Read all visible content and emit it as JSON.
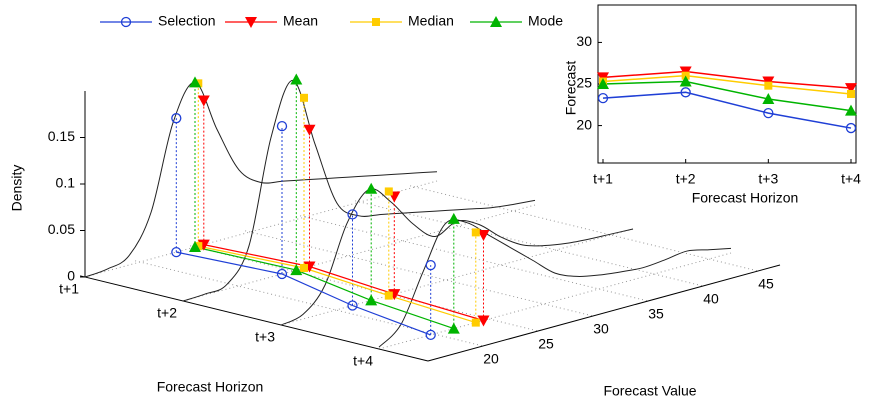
{
  "chart_data": [
    {
      "type": "density3d",
      "legend": "top",
      "categories": [
        "t+1",
        "t+2",
        "t+3",
        "t+4"
      ],
      "xlabel": "Forecast Value",
      "ylabel": "Forecast Horizon",
      "zlabel": "Density",
      "xlim": [
        15,
        47
      ],
      "xticks": [
        20,
        25,
        30,
        35,
        40,
        45
      ],
      "zlim": [
        0,
        0.2
      ],
      "zticks": [
        0,
        0.05,
        0.1,
        0.15
      ],
      "curve_color": "#222222",
      "curve_x": [
        15,
        17,
        19,
        21,
        23,
        25,
        27,
        29,
        31,
        33,
        35,
        37,
        39,
        41,
        43,
        45,
        47
      ],
      "curves": [
        [
          0,
          0.002,
          0.01,
          0.05,
          0.14,
          0.177,
          0.12,
          0.07,
          0.05,
          0.045,
          0.04,
          0.035,
          0.03,
          0.025,
          0.02,
          0.015,
          0.01
        ],
        [
          0,
          0.001,
          0.005,
          0.04,
          0.15,
          0.205,
          0.13,
          0.06,
          0.04,
          0.035,
          0.03,
          0.025,
          0.02,
          0.015,
          0.01,
          0.007,
          0.005
        ],
        [
          0,
          0.005,
          0.03,
          0.09,
          0.12,
          0.1,
          0.07,
          0.05,
          0.06,
          0.05,
          0.03,
          0.015,
          0.008,
          0.004,
          0.002,
          0.001,
          0
        ],
        [
          0.002,
          0.02,
          0.07,
          0.115,
          0.11,
          0.09,
          0.07,
          0.05,
          0.03,
          0.02,
          0.015,
          0.012,
          0.01,
          0.012,
          0.015,
          0.01,
          0.005
        ]
      ],
      "series": [
        {
          "name": "Selection",
          "color": "#1f3fd6",
          "marker": "circle",
          "values": [
            23.3,
            24,
            21.5,
            19.7
          ],
          "densities": [
            0.144,
            0.159,
            0.098,
            0.075
          ]
        },
        {
          "name": "Mean",
          "color": "#ff0000",
          "marker": "triangle-down",
          "values": [
            25.8,
            26.5,
            25.3,
            24.5
          ],
          "densities": [
            0.155,
            0.147,
            0.105,
            0.092
          ]
        },
        {
          "name": "Median",
          "color": "#ffcc00",
          "marker": "square",
          "values": [
            25.3,
            26,
            24.8,
            23.8
          ],
          "densities": [
            0.175,
            0.183,
            0.112,
            0.097
          ]
        },
        {
          "name": "Mode",
          "color": "#00b400",
          "marker": "triangle-up",
          "values": [
            25,
            25.3,
            23.2,
            21.8
          ],
          "densities": [
            0.177,
            0.205,
            0.12,
            0.118
          ]
        }
      ]
    },
    {
      "type": "line",
      "xlabel": "Forecast Horizon",
      "ylabel": "Forecast",
      "categories": [
        "t+1",
        "t+2",
        "t+3",
        "t+4"
      ],
      "ylim": [
        15.5,
        34.5
      ],
      "yticks": [
        20,
        25,
        30
      ],
      "series": [
        {
          "color": "#1f3fd6",
          "marker": "circle",
          "values": [
            23.3,
            24,
            21.5,
            19.7
          ]
        },
        {
          "color": "#ff0000",
          "marker": "triangle-down",
          "values": [
            25.8,
            26.5,
            25.3,
            24.5
          ]
        },
        {
          "color": "#ffcc00",
          "marker": "square",
          "values": [
            25.3,
            26,
            24.8,
            23.8
          ]
        },
        {
          "color": "#00b400",
          "marker": "triangle-up",
          "values": [
            25,
            25.3,
            23.2,
            21.8
          ]
        }
      ]
    }
  ]
}
